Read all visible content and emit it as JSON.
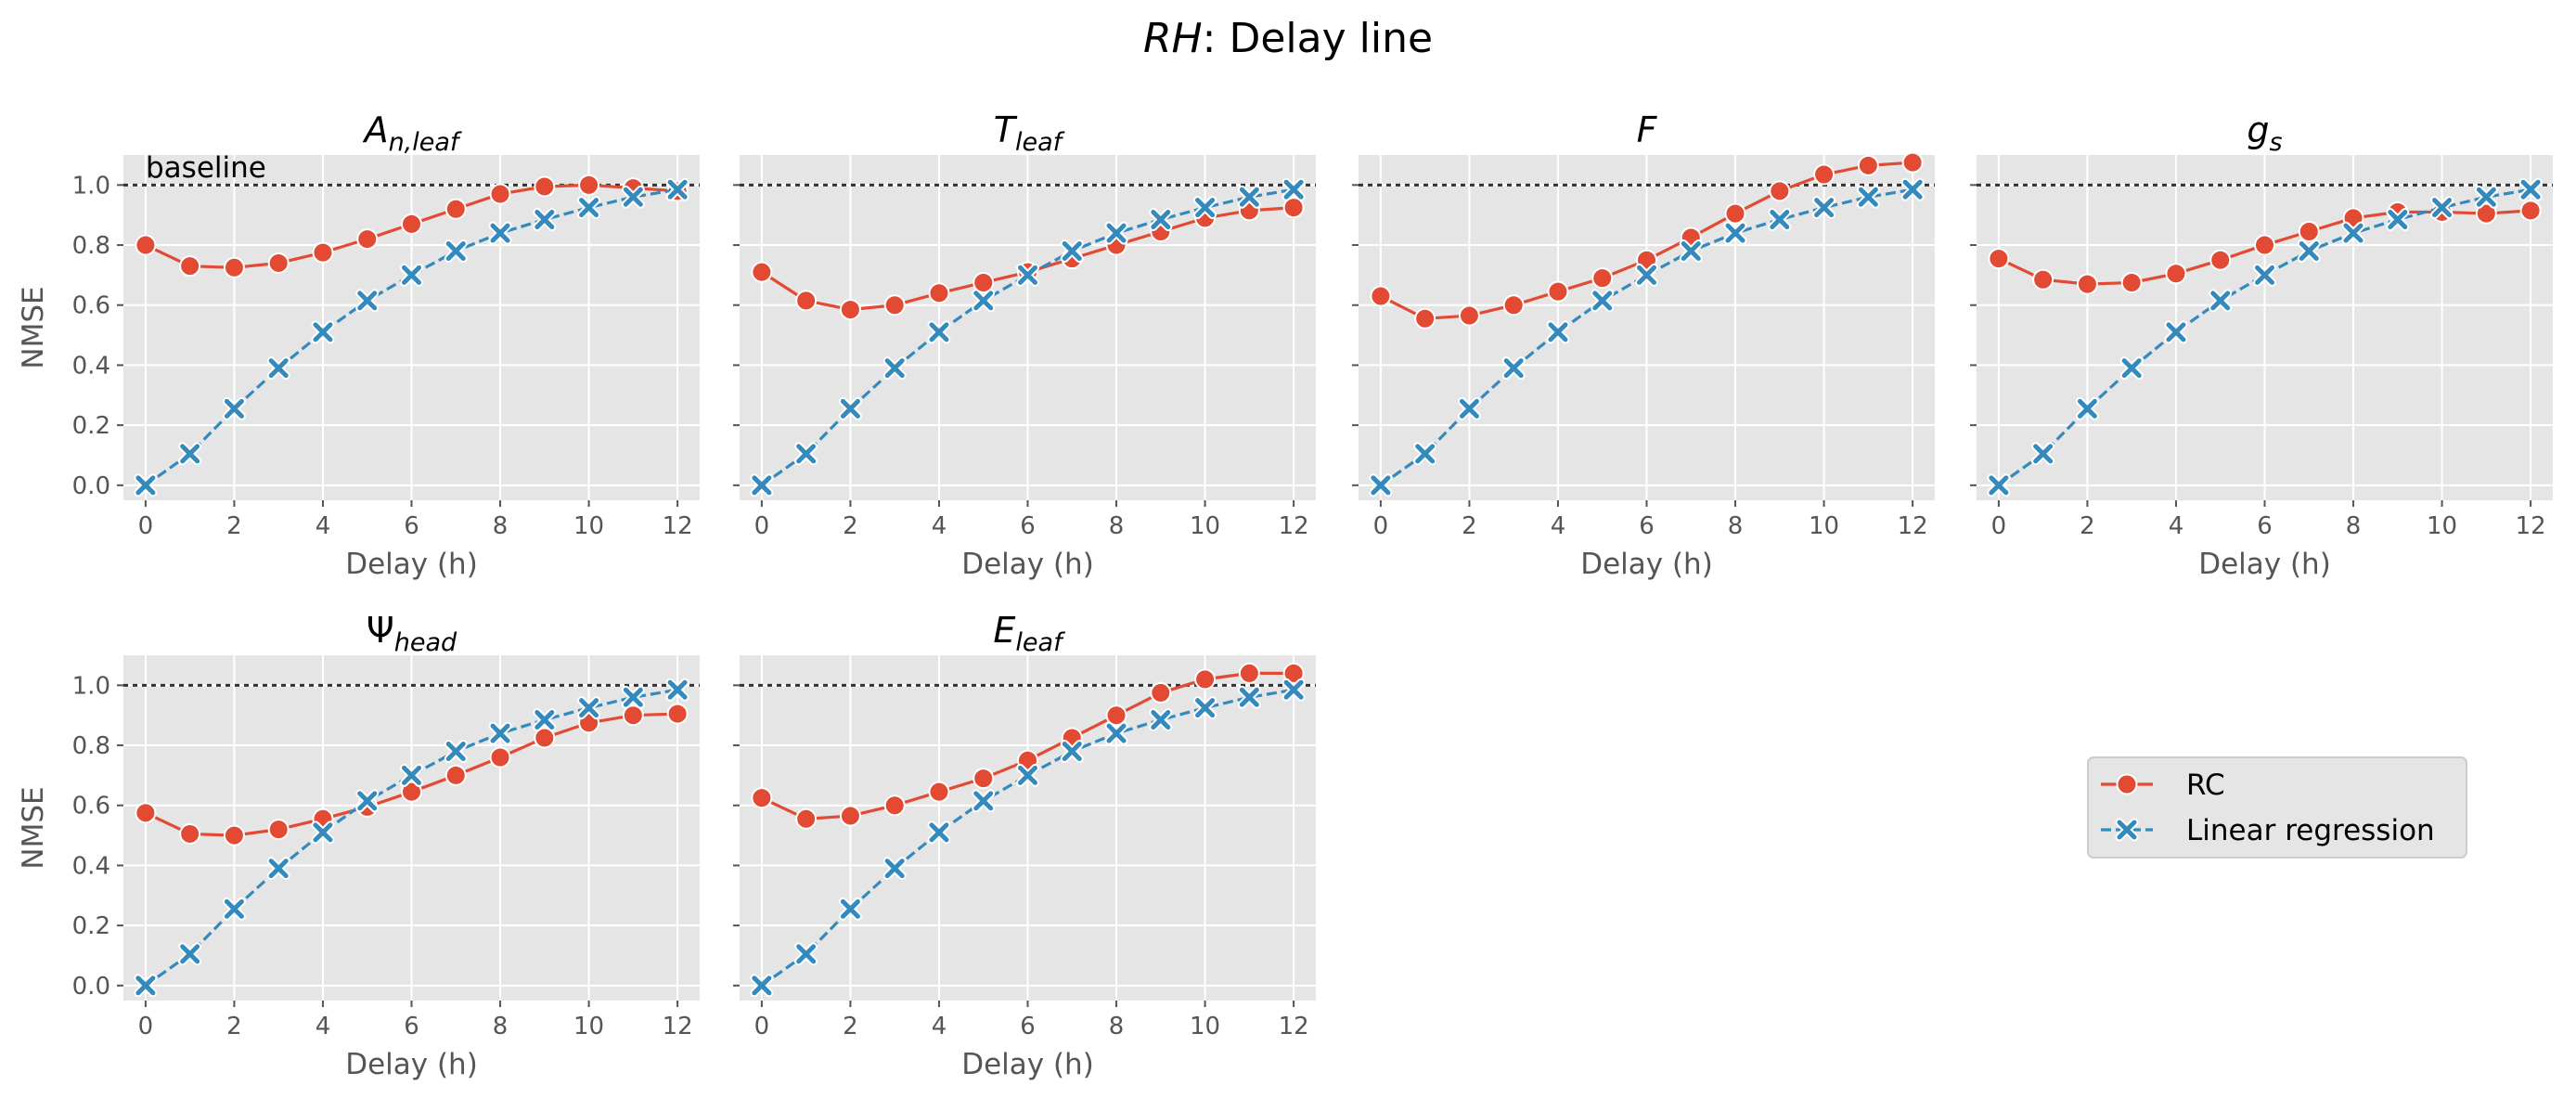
{
  "figure": {
    "title_italic": "RH",
    "title_rest": ": Delay line"
  },
  "legend": {
    "placement": "right, beside bottom row",
    "entries": [
      {
        "label": "RC",
        "color": "#E24A33",
        "marker": "circle",
        "linestyle": "solid"
      },
      {
        "label": "Linear regression",
        "color": "#348ABD",
        "marker": "x",
        "linestyle": "dashed"
      }
    ]
  },
  "colors": {
    "axes_bg": "#E5E5E5",
    "grid": "#FFFFFF",
    "baseline": "#333333",
    "rc": "#E24A33",
    "lr": "#348ABD"
  },
  "chart_data": [
    {
      "type": "line",
      "title_main": "A",
      "title_sub": "n,leaf",
      "title_sub_italic": true,
      "title_main_italic": true,
      "xlabel": "Delay (h)",
      "ylabel": "NMSE",
      "annotation": "baseline",
      "xlim": [
        -0.5,
        12.5
      ],
      "ylim": [
        -0.05,
        1.1
      ],
      "xticks": [
        0,
        2,
        4,
        6,
        8,
        10,
        12
      ],
      "yticks": [
        0.0,
        0.2,
        0.4,
        0.6,
        0.8,
        1.0
      ],
      "baseline_y": 1.0,
      "grid": true,
      "x": [
        0,
        1,
        2,
        3,
        4,
        5,
        6,
        7,
        8,
        9,
        10,
        11,
        12
      ],
      "series": [
        {
          "name": "RC",
          "values": [
            0.8,
            0.73,
            0.725,
            0.74,
            0.775,
            0.82,
            0.87,
            0.92,
            0.97,
            0.995,
            1.0,
            0.99,
            0.98
          ]
        },
        {
          "name": "Linear regression",
          "values": [
            0.0,
            0.105,
            0.255,
            0.39,
            0.51,
            0.615,
            0.7,
            0.78,
            0.84,
            0.885,
            0.925,
            0.96,
            0.985
          ]
        }
      ]
    },
    {
      "type": "line",
      "title_main": "T",
      "title_sub": "leaf",
      "title_sub_italic": true,
      "title_main_italic": true,
      "xlabel": "Delay (h)",
      "ylabel": "",
      "xlim": [
        -0.5,
        12.5
      ],
      "ylim": [
        -0.05,
        1.1
      ],
      "xticks": [
        0,
        2,
        4,
        6,
        8,
        10,
        12
      ],
      "yticks": [
        0.0,
        0.2,
        0.4,
        0.6,
        0.8,
        1.0
      ],
      "baseline_y": 1.0,
      "grid": true,
      "x": [
        0,
        1,
        2,
        3,
        4,
        5,
        6,
        7,
        8,
        9,
        10,
        11,
        12
      ],
      "series": [
        {
          "name": "RC",
          "values": [
            0.71,
            0.615,
            0.585,
            0.6,
            0.64,
            0.675,
            0.71,
            0.755,
            0.8,
            0.845,
            0.89,
            0.915,
            0.925
          ]
        },
        {
          "name": "Linear regression",
          "values": [
            0.0,
            0.105,
            0.255,
            0.39,
            0.51,
            0.615,
            0.7,
            0.78,
            0.84,
            0.885,
            0.925,
            0.96,
            0.985
          ]
        }
      ]
    },
    {
      "type": "line",
      "title_main": "F",
      "title_sub": "",
      "title_sub_italic": true,
      "title_main_italic": true,
      "xlabel": "Delay (h)",
      "ylabel": "",
      "xlim": [
        -0.5,
        12.5
      ],
      "ylim": [
        -0.05,
        1.1
      ],
      "xticks": [
        0,
        2,
        4,
        6,
        8,
        10,
        12
      ],
      "yticks": [
        0.0,
        0.2,
        0.4,
        0.6,
        0.8,
        1.0
      ],
      "baseline_y": 1.0,
      "grid": true,
      "x": [
        0,
        1,
        2,
        3,
        4,
        5,
        6,
        7,
        8,
        9,
        10,
        11,
        12
      ],
      "series": [
        {
          "name": "RC",
          "values": [
            0.63,
            0.555,
            0.565,
            0.6,
            0.645,
            0.69,
            0.75,
            0.825,
            0.905,
            0.98,
            1.035,
            1.065,
            1.075
          ]
        },
        {
          "name": "Linear regression",
          "values": [
            0.0,
            0.105,
            0.255,
            0.39,
            0.51,
            0.615,
            0.7,
            0.78,
            0.84,
            0.885,
            0.925,
            0.96,
            0.985
          ]
        }
      ]
    },
    {
      "type": "line",
      "title_main": "g",
      "title_sub": "s",
      "title_sub_italic": true,
      "title_main_italic": true,
      "xlabel": "Delay (h)",
      "ylabel": "",
      "xlim": [
        -0.5,
        12.5
      ],
      "ylim": [
        -0.05,
        1.1
      ],
      "xticks": [
        0,
        2,
        4,
        6,
        8,
        10,
        12
      ],
      "yticks": [
        0.0,
        0.2,
        0.4,
        0.6,
        0.8,
        1.0
      ],
      "baseline_y": 1.0,
      "grid": true,
      "x": [
        0,
        1,
        2,
        3,
        4,
        5,
        6,
        7,
        8,
        9,
        10,
        11,
        12
      ],
      "series": [
        {
          "name": "RC",
          "values": [
            0.755,
            0.685,
            0.67,
            0.675,
            0.705,
            0.75,
            0.8,
            0.845,
            0.89,
            0.91,
            0.91,
            0.905,
            0.915
          ]
        },
        {
          "name": "Linear regression",
          "values": [
            0.0,
            0.105,
            0.255,
            0.39,
            0.51,
            0.615,
            0.7,
            0.78,
            0.84,
            0.885,
            0.925,
            0.96,
            0.985
          ]
        }
      ]
    },
    {
      "type": "line",
      "title_main": "Ψ",
      "title_sub": "head",
      "title_sub_italic": true,
      "title_main_italic": false,
      "xlabel": "Delay (h)",
      "ylabel": "NMSE",
      "xlim": [
        -0.5,
        12.5
      ],
      "ylim": [
        -0.05,
        1.1
      ],
      "xticks": [
        0,
        2,
        4,
        6,
        8,
        10,
        12
      ],
      "yticks": [
        0.0,
        0.2,
        0.4,
        0.6,
        0.8,
        1.0
      ],
      "baseline_y": 1.0,
      "grid": true,
      "x": [
        0,
        1,
        2,
        3,
        4,
        5,
        6,
        7,
        8,
        9,
        10,
        11,
        12
      ],
      "series": [
        {
          "name": "RC",
          "values": [
            0.575,
            0.505,
            0.5,
            0.52,
            0.555,
            0.595,
            0.645,
            0.7,
            0.76,
            0.825,
            0.875,
            0.9,
            0.905
          ]
        },
        {
          "name": "Linear regression",
          "values": [
            0.0,
            0.105,
            0.255,
            0.39,
            0.51,
            0.615,
            0.7,
            0.78,
            0.84,
            0.885,
            0.925,
            0.96,
            0.985
          ]
        }
      ]
    },
    {
      "type": "line",
      "title_main": "E",
      "title_sub": "leaf",
      "title_sub_italic": true,
      "title_main_italic": true,
      "xlabel": "Delay (h)",
      "ylabel": "",
      "xlim": [
        -0.5,
        12.5
      ],
      "ylim": [
        -0.05,
        1.1
      ],
      "xticks": [
        0,
        2,
        4,
        6,
        8,
        10,
        12
      ],
      "yticks": [
        0.0,
        0.2,
        0.4,
        0.6,
        0.8,
        1.0
      ],
      "baseline_y": 1.0,
      "grid": true,
      "x": [
        0,
        1,
        2,
        3,
        4,
        5,
        6,
        7,
        8,
        9,
        10,
        11,
        12
      ],
      "series": [
        {
          "name": "RC",
          "values": [
            0.625,
            0.555,
            0.565,
            0.6,
            0.645,
            0.69,
            0.75,
            0.825,
            0.9,
            0.975,
            1.02,
            1.04,
            1.04
          ]
        },
        {
          "name": "Linear regression",
          "values": [
            0.0,
            0.105,
            0.255,
            0.39,
            0.51,
            0.615,
            0.7,
            0.78,
            0.84,
            0.885,
            0.925,
            0.96,
            0.985
          ]
        }
      ]
    }
  ]
}
